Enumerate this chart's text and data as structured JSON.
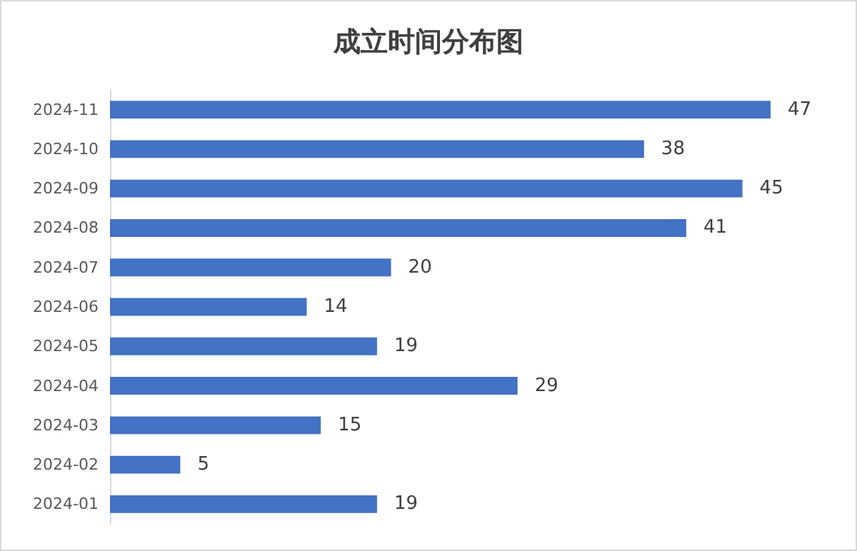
{
  "chart_data": {
    "type": "bar",
    "title": "成立时间分布图",
    "orientation": "horizontal",
    "categories": [
      "2024-11",
      "2024-10",
      "2024-09",
      "2024-08",
      "2024-07",
      "2024-06",
      "2024-05",
      "2024-04",
      "2024-03",
      "2024-02",
      "2024-01"
    ],
    "values": [
      47,
      38,
      45,
      41,
      20,
      14,
      19,
      29,
      15,
      5,
      19
    ],
    "color": "#4472c4",
    "data_labels": true
  }
}
